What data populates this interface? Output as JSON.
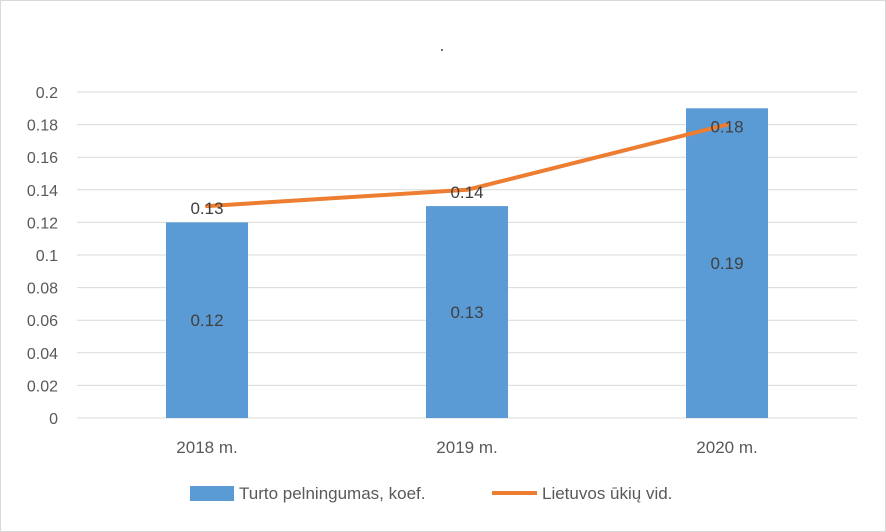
{
  "chart_data": {
    "type": "bar",
    "title": ".",
    "categories": [
      "2018 m.",
      "2019 m.",
      "2020 m."
    ],
    "series": [
      {
        "name": "Turto pelningumas, koef.",
        "type": "bar",
        "values": [
          0.12,
          0.13,
          0.19
        ],
        "color": "#5b9bd5"
      },
      {
        "name": "Lietuvos ūkių vid.",
        "type": "line",
        "values": [
          0.13,
          0.14,
          0.18
        ],
        "color": "#ed7d31"
      }
    ],
    "ylim": [
      0,
      0.2
    ],
    "yticks": [
      "0",
      "0.02",
      "0.04",
      "0.06",
      "0.08",
      "0.1",
      "0.12",
      "0.14",
      "0.16",
      "0.18",
      "0.2"
    ],
    "bar_data_labels": [
      "0.12",
      "0.13",
      "0.19"
    ],
    "line_data_labels": [
      "0.13",
      "0.14",
      "0.18"
    ],
    "grid": true,
    "legend_position": "bottom"
  }
}
